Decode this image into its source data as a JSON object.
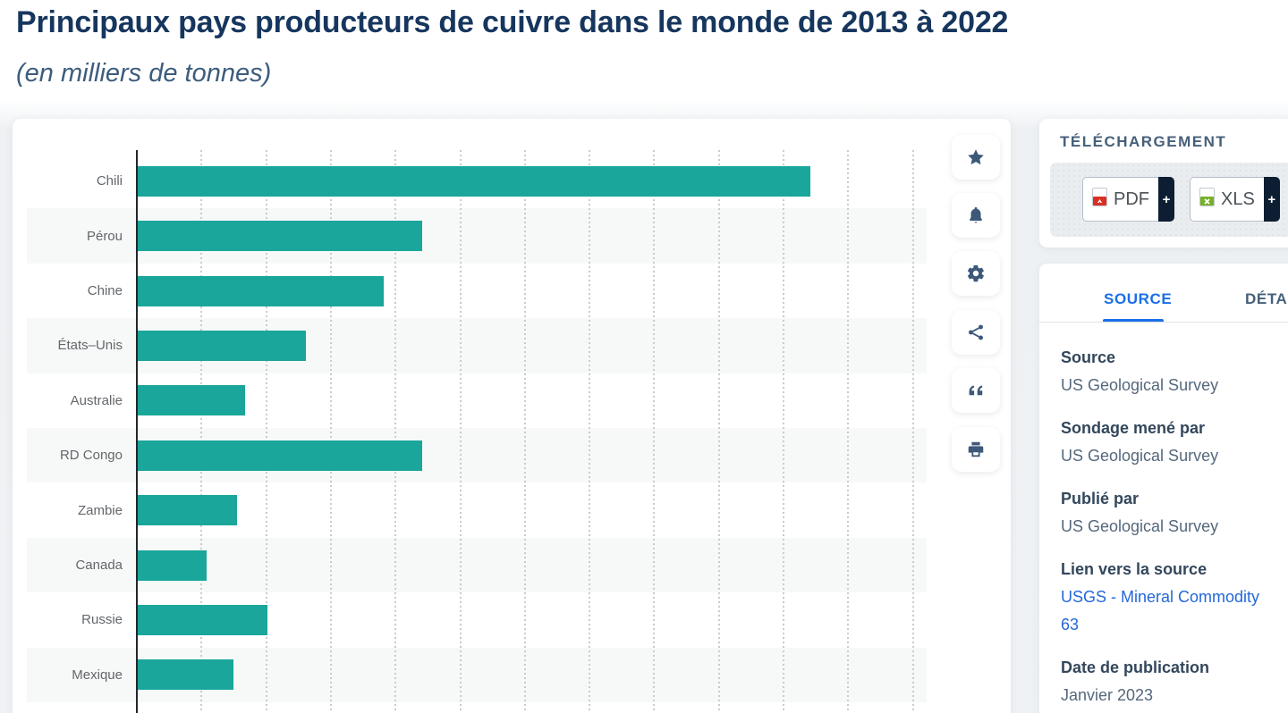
{
  "page": {
    "title": "Principaux pays producteurs de cuivre dans le monde de 2013 à 2022",
    "subtitle": "(en milliers de tonnes)"
  },
  "chart_data": {
    "type": "bar",
    "orientation": "horizontal",
    "title": "Principaux pays producteurs de cuivre dans le monde de 2013 à 2022",
    "unit_label": "(en milliers de tonnes)",
    "categories": [
      "Chili",
      "Pérou",
      "Chine",
      "États–Unis",
      "Australie",
      "RD Congo",
      "Zambie",
      "Canada",
      "Russie",
      "Mexique"
    ],
    "values": [
      5200,
      2200,
      1900,
      1300,
      830,
      2200,
      770,
      530,
      1000,
      740
    ],
    "xlim": [
      0,
      6000
    ],
    "gridline_step": 500,
    "grid": "dotted-vertical",
    "bar_color": "#1aa69a",
    "alt_row_color": "#f7f8f8",
    "legend": "none"
  },
  "toolbar": {
    "buttons": [
      {
        "icon": "star-icon"
      },
      {
        "icon": "bell-icon"
      },
      {
        "icon": "gear-icon"
      },
      {
        "icon": "share-icon"
      },
      {
        "icon": "quote-icon"
      },
      {
        "icon": "printer-icon"
      }
    ]
  },
  "download": {
    "heading": "TÉLÉCHARGEMENT",
    "buttons": [
      {
        "label": "PDF",
        "plus": "+",
        "icon": "pdf-file-icon"
      },
      {
        "label": "XLS",
        "plus": "+",
        "icon": "xls-file-icon"
      }
    ]
  },
  "panel": {
    "tabs": [
      {
        "label": "SOURCE",
        "active": true
      },
      {
        "label": "DÉTAILS",
        "active": false
      }
    ],
    "fields": [
      {
        "label": "Source",
        "value": "US Geological Survey"
      },
      {
        "label": "Sondage mené par",
        "value": "US Geological Survey"
      },
      {
        "label": "Publié par",
        "value": "US Geological Survey"
      },
      {
        "label": "Lien vers la source",
        "value": "USGS - Mineral Commodity 63"
      },
      {
        "label": "Date de publication",
        "value": "Janvier 2023"
      }
    ]
  },
  "colors": {
    "bar": "#1aa69a",
    "title": "#16365e",
    "subtitle": "#3d5c7d",
    "accent_blue": "#1a6fe8",
    "link_blue": "#2468d9",
    "dark_plus_block": "#0d1e32",
    "pdf_red": "#d93025",
    "xls_green": "#76b02a",
    "icon_slate": "#3d5878"
  }
}
